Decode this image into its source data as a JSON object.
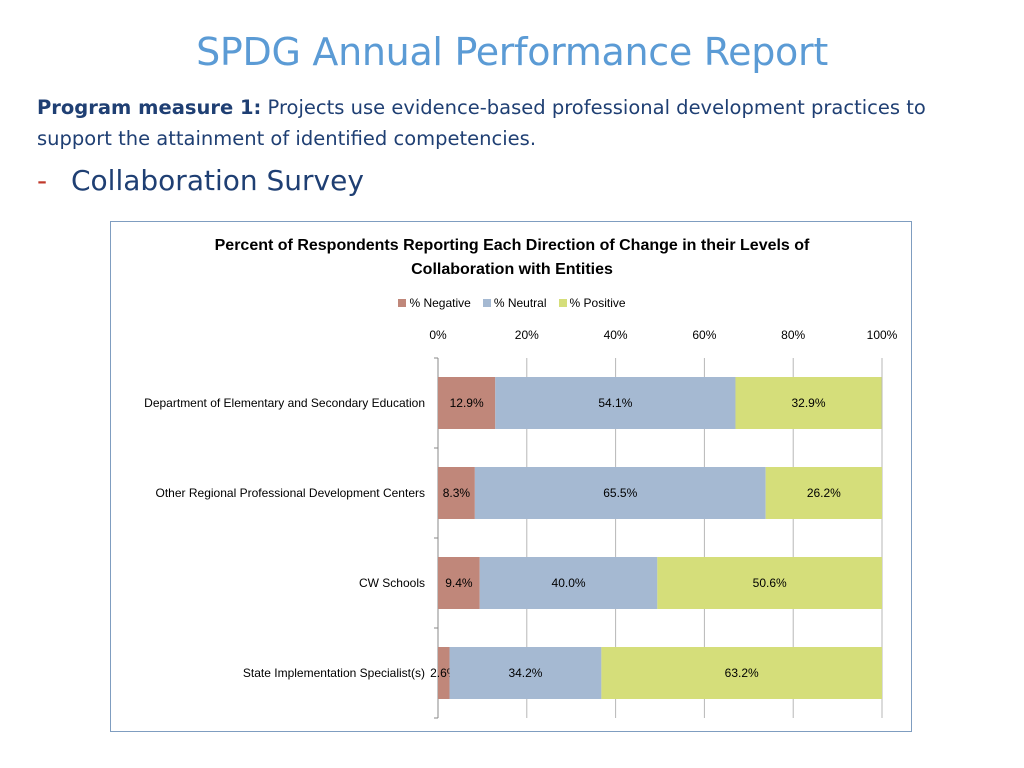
{
  "slide": {
    "title": "SPDG Annual Performance Report",
    "measure_label": "Program measure 1:",
    "measure_text": " Projects use evidence-based professional development practices to support the attainment of identified competencies.",
    "bullet_dash": "-",
    "bullet_text": "Collaboration Survey"
  },
  "chart_data": {
    "type": "bar",
    "orientation": "horizontal",
    "stacked": "percent",
    "title_line1": "Percent of Respondents Reporting Each Direction of Change in their Levels of",
    "title_line2": "Collaboration with Entities",
    "categories": [
      "Department of Elementary and Secondary Education",
      "Other Regional Professional Development Centers",
      "CW Schools",
      "State Implementation Specialist(s)"
    ],
    "series": [
      {
        "name": "% Negative",
        "values": [
          12.9,
          8.3,
          9.4,
          2.6
        ],
        "labels": [
          "12.9%",
          "8.3%",
          "9.4%",
          "2.6%"
        ],
        "color": "#c0877a"
      },
      {
        "name": "% Neutral",
        "values": [
          54.1,
          65.5,
          40.0,
          34.2
        ],
        "labels": [
          "54.1%",
          "65.5%",
          "40.0%",
          "34.2%"
        ],
        "color": "#a5b9d2"
      },
      {
        "name": "% Positive",
        "values": [
          32.9,
          26.2,
          50.6,
          63.2
        ],
        "labels": [
          "32.9%",
          "26.2%",
          "50.6%",
          "63.2%"
        ],
        "color": "#d5de7a"
      }
    ],
    "xlim": [
      0,
      100
    ],
    "xticks": [
      "0%",
      "20%",
      "40%",
      "60%",
      "80%",
      "100%"
    ],
    "legend_position": "top",
    "grid": true
  }
}
